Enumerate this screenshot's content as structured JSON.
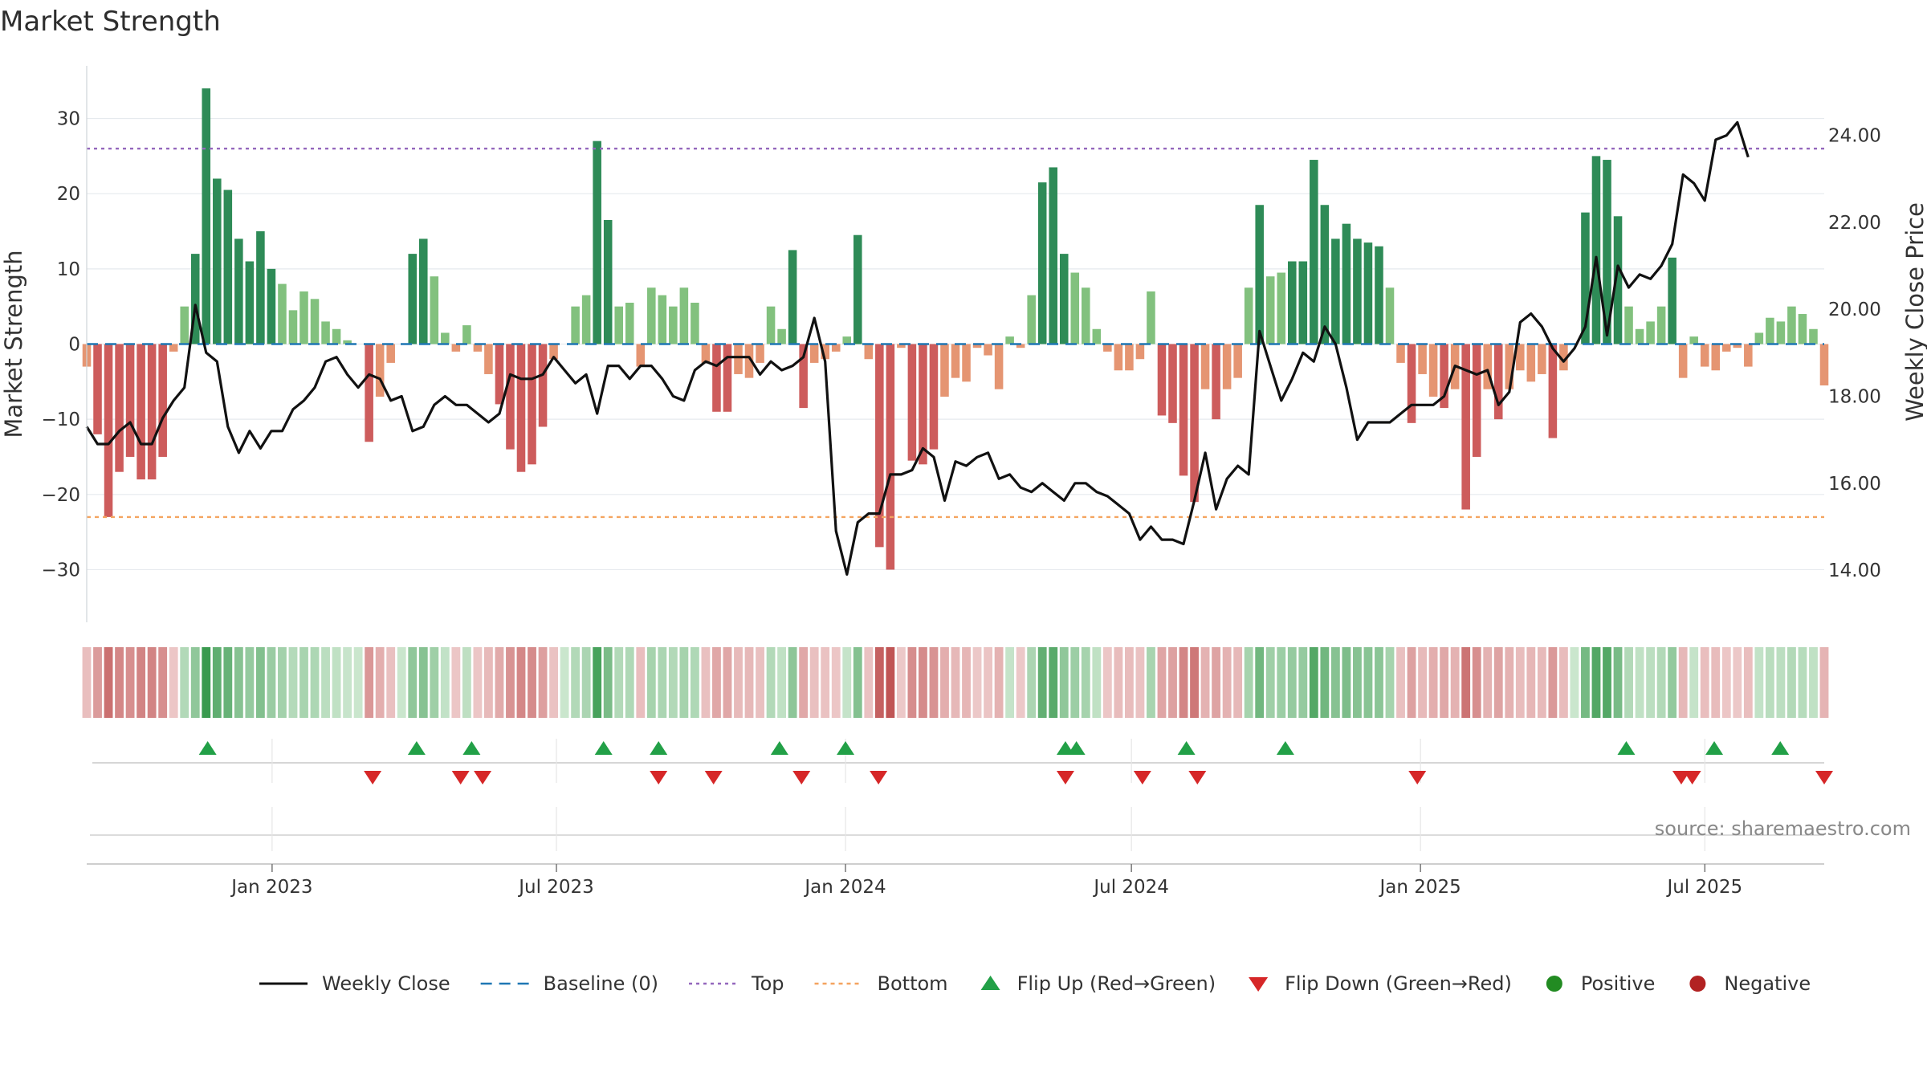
{
  "chart_data": {
    "type": "bar",
    "title": "Market Strength",
    "ylabel": "Market Strength",
    "y2label": "Weekly Close Price",
    "ylim": [
      -37,
      37
    ],
    "y2lim": [
      12.8,
      25.6
    ],
    "y_ticks": [
      30,
      20,
      10,
      0,
      -10,
      -20,
      -30
    ],
    "y2_ticks": [
      "24.00",
      "22.00",
      "20.00",
      "18.00",
      "16.00",
      "14.00"
    ],
    "x_start": "2022-09-05",
    "x_end": "2025-09-15",
    "x_ticks": [
      {
        "date": "2023-01-01",
        "label": "Jan 2023"
      },
      {
        "date": "2023-07-01",
        "label": "Jul 2023"
      },
      {
        "date": "2024-01-01",
        "label": "Jan 2024"
      },
      {
        "date": "2024-07-01",
        "label": "Jul 2024"
      },
      {
        "date": "2025-01-01",
        "label": "Jan 2025"
      },
      {
        "date": "2025-07-01",
        "label": "Jul 2025"
      }
    ],
    "top_line": 26,
    "bottom_line": -23,
    "strength": [
      -3,
      -12,
      -23,
      -17,
      -15,
      -18,
      -18,
      -15,
      -1,
      5,
      12,
      34,
      22,
      20.5,
      14,
      11,
      15,
      10,
      8,
      4.5,
      7,
      6,
      3,
      2,
      0.5,
      0,
      -13,
      -7,
      -2.5,
      0,
      12,
      14,
      9,
      1.5,
      -1,
      2.5,
      -1,
      -4,
      -8,
      -14,
      -17,
      -16,
      -11,
      -2,
      0,
      5,
      6.5,
      27,
      16.5,
      5,
      5.5,
      -3,
      7.5,
      6.5,
      5,
      7.5,
      5.5,
      -2.5,
      -9,
      -9,
      -4,
      -4.5,
      -2.5,
      5,
      2,
      12.5,
      -8.5,
      -2.5,
      -2,
      -1,
      1,
      14.5,
      -2,
      -27,
      -30,
      -0.5,
      -15.5,
      -16,
      -14,
      -7,
      -4.5,
      -5,
      -0.5,
      -1.5,
      -6,
      1,
      -0.5,
      6.5,
      21.5,
      23.5,
      12,
      9.5,
      7.5,
      2,
      -1,
      -3.5,
      -3.5,
      -2,
      7,
      -9.5,
      -10.5,
      -17.5,
      -21,
      -6,
      -10,
      -6,
      -4.5,
      7.5,
      18.5,
      9,
      9.5,
      11,
      11,
      24.5,
      18.5,
      14,
      16,
      14,
      13.5,
      13,
      7.5,
      -2.5,
      -10.5,
      -4,
      -7,
      -8.5,
      -6,
      -22,
      -15,
      -6,
      -10,
      -6,
      -3.5,
      -5,
      -4,
      -12.5,
      -3.5,
      0,
      17.5,
      25,
      24.5,
      17,
      5,
      2,
      3,
      5,
      11.5,
      -4.5,
      1,
      -3,
      -3.5,
      -1,
      -0.5,
      -3,
      1.5,
      3.5,
      3,
      5,
      4,
      2,
      -5.5
    ],
    "weekly_close": [
      17.3,
      16.9,
      16.9,
      17.2,
      17.4,
      16.9,
      16.9,
      17.5,
      17.9,
      18.2,
      20.1,
      19.0,
      18.8,
      17.3,
      16.7,
      17.2,
      16.8,
      17.2,
      17.2,
      17.7,
      17.9,
      18.2,
      18.8,
      18.9,
      18.5,
      18.2,
      18.5,
      18.4,
      17.9,
      18.0,
      17.2,
      17.3,
      17.8,
      18.0,
      17.8,
      17.8,
      17.6,
      17.4,
      17.6,
      18.5,
      18.4,
      18.4,
      18.5,
      18.9,
      18.6,
      18.3,
      18.5,
      17.6,
      18.7,
      18.7,
      18.4,
      18.7,
      18.7,
      18.4,
      18.0,
      17.9,
      18.6,
      18.8,
      18.7,
      18.9,
      18.9,
      18.9,
      18.5,
      18.8,
      18.6,
      18.7,
      18.9,
      19.8,
      18.8,
      14.9,
      13.9,
      15.1,
      15.3,
      15.3,
      16.2,
      16.2,
      16.3,
      16.8,
      16.6,
      15.6,
      16.5,
      16.4,
      16.6,
      16.7,
      16.1,
      16.2,
      15.9,
      15.8,
      16.0,
      15.8,
      15.6,
      16.0,
      16.0,
      15.8,
      15.7,
      15.5,
      15.3,
      14.7,
      15.0,
      14.7,
      14.7,
      14.6,
      15.6,
      16.7,
      15.4,
      16.1,
      16.4,
      16.2,
      19.5,
      18.7,
      17.9,
      18.4,
      19.0,
      18.8,
      19.6,
      19.2,
      18.2,
      17.0,
      17.4,
      17.4,
      17.4,
      17.6,
      17.8,
      17.8,
      17.8,
      18.0,
      18.7,
      18.6,
      18.5,
      18.6,
      17.8,
      18.1,
      19.7,
      19.9,
      19.6,
      19.1,
      18.8,
      19.1,
      19.6,
      21.2,
      19.4,
      21.0,
      20.5,
      20.8,
      20.7,
      21.0,
      21.5,
      23.1,
      22.9,
      22.5,
      23.9,
      24.0,
      24.3,
      23.5
    ],
    "heat_strip": [
      -3,
      -12,
      -23,
      -17,
      -15,
      -18,
      -18,
      -15,
      -1,
      5,
      12,
      34,
      22,
      20.5,
      14,
      11,
      15,
      10,
      8,
      4.5,
      7,
      6,
      3,
      2,
      0.5,
      0,
      -13,
      -7,
      -2.5,
      0,
      12,
      14,
      9,
      1.5,
      -1,
      2.5,
      -1,
      -4,
      -8,
      -14,
      -17,
      -16,
      -11,
      -2,
      0,
      5,
      6.5,
      27,
      16.5,
      5,
      5.5,
      -3,
      7.5,
      6.5,
      5,
      7.5,
      5.5,
      -2.5,
      -9,
      -9,
      -4,
      -4.5,
      -2.5,
      5,
      2,
      12.5,
      -8.5,
      -2.5,
      -2,
      -1,
      1,
      14.5,
      -2,
      -27,
      -30,
      -0.5,
      -15.5,
      -16,
      -14,
      -7,
      -4.5,
      -5,
      -0.5,
      -1.5,
      -6,
      1,
      -0.5,
      6.5,
      21.5,
      23.5,
      12,
      9.5,
      7.5,
      2,
      -1,
      -3.5,
      -3.5,
      -2,
      7,
      -9.5,
      -10.5,
      -17.5,
      -21,
      -6,
      -10,
      -6,
      -4.5,
      7.5,
      18.5,
      9,
      9.5,
      11,
      11,
      24.5,
      18.5,
      14,
      16,
      14,
      13.5,
      13,
      7.5,
      -2.5,
      -10.5,
      -4,
      -7,
      -8.5,
      -6,
      -22,
      -15,
      -6,
      -10,
      -6,
      -3.5,
      -5,
      -4,
      -12.5,
      -3.5,
      0,
      17.5,
      25,
      24.5,
      17,
      5,
      2,
      3,
      5,
      11.5,
      -4.5,
      1,
      -3,
      -3.5,
      -1,
      -0.5,
      -3,
      1.5,
      3.5,
      3,
      5,
      4,
      2,
      -5.5
    ],
    "flip_up_dates": [
      "2022-11-21",
      "2023-04-03",
      "2023-05-08",
      "2023-07-31",
      "2023-09-04",
      "2023-11-20",
      "2024-01-01",
      "2024-05-20",
      "2024-05-27",
      "2024-08-05",
      "2024-10-07",
      "2025-05-12",
      "2025-07-07",
      "2025-08-18"
    ],
    "flip_down_dates": [
      "2023-03-06",
      "2023-05-01",
      "2023-05-15",
      "2023-09-04",
      "2023-10-09",
      "2023-12-04",
      "2024-01-22",
      "2024-05-20",
      "2024-07-08",
      "2024-08-12",
      "2024-12-30",
      "2025-06-16",
      "2025-06-23",
      "2025-09-15"
    ],
    "colors": {
      "strong_green": "#2e8b57",
      "weak_green": "#82c17e",
      "strong_red": "#cd5c5c",
      "weak_red": "#e59572",
      "close_line": "#111111",
      "baseline": "#1f77b4",
      "top": "#9467bd",
      "bottom": "#f4a460",
      "flip_up": "#22a047",
      "flip_down": "#d62728",
      "positive": "#228b22",
      "negative": "#b22222"
    },
    "legend": [
      {
        "label": "Weekly Close",
        "kind": "line-solid"
      },
      {
        "label": "Baseline (0)",
        "kind": "line-dash"
      },
      {
        "label": "Top",
        "kind": "line-dot-top"
      },
      {
        "label": "Bottom",
        "kind": "line-dot-bottom"
      },
      {
        "label": "Flip Up (Red→Green)",
        "kind": "tri-up"
      },
      {
        "label": "Flip Down (Green→Red)",
        "kind": "tri-down"
      },
      {
        "label": "Positive",
        "kind": "dot-pos"
      },
      {
        "label": "Negative",
        "kind": "dot-neg"
      }
    ],
    "source": "source: sharemaestro.com"
  }
}
